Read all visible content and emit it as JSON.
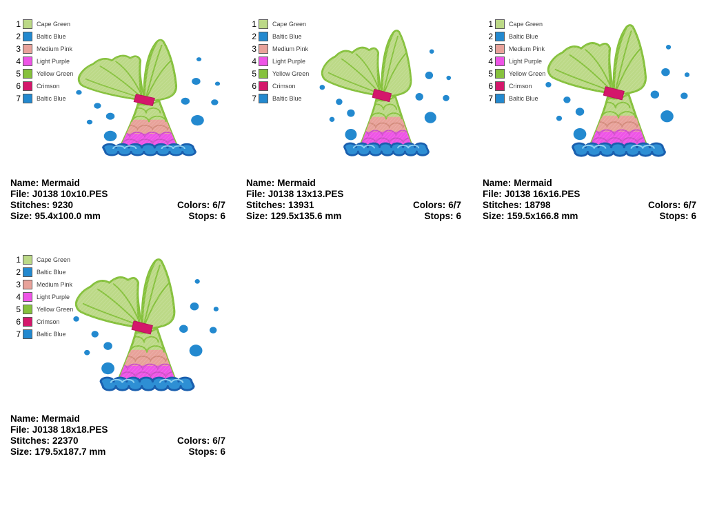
{
  "colors": {
    "cape_green": "#bcd987",
    "baltic_blue": "#2389cf",
    "medium_pink": "#e8a29a",
    "light_purple": "#ee54e6",
    "yellow_green": "#86c13d",
    "crimson": "#d4176b",
    "water_fill": "#2e8fd4",
    "water_edge": "#1a5fae",
    "info_text": "#000000"
  },
  "legend": [
    {
      "num": "1",
      "name": "Cape Green",
      "color": "#bcd987"
    },
    {
      "num": "2",
      "name": "Baltic Blue",
      "color": "#2389cf"
    },
    {
      "num": "3",
      "name": "Medium Pink",
      "color": "#e8a29a"
    },
    {
      "num": "4",
      "name": "Light Purple",
      "color": "#ee54e6"
    },
    {
      "num": "5",
      "name": "Yellow Green",
      "color": "#86c13d"
    },
    {
      "num": "6",
      "name": "Crimson",
      "color": "#d4176b"
    },
    {
      "num": "7",
      "name": "Baltic Blue",
      "color": "#2389cf"
    }
  ],
  "labels": {
    "name": "Name:",
    "file": "File:",
    "stitches": "Stitches:",
    "size": "Size:",
    "colors": "Colors:",
    "stops": "Stops:"
  },
  "panels": [
    {
      "name": "Mermaid",
      "file": "J0138 10x10.PES",
      "stitches": "9230",
      "size": "95.4x100.0 mm",
      "colors": "6/7",
      "stops": "6"
    },
    {
      "name": "Mermaid",
      "file": "J0138 13x13.PES",
      "stitches": "13931",
      "size": "129.5x135.6 mm",
      "colors": "6/7",
      "stops": "6"
    },
    {
      "name": "Mermaid",
      "file": "J0138 16x16.PES",
      "stitches": "18798",
      "size": "159.5x166.8 mm",
      "colors": "6/7",
      "stops": "6"
    },
    {
      "name": "Mermaid",
      "file": "J0138 18x18.PES",
      "stitches": "22370",
      "size": "179.5x187.7 mm",
      "colors": "6/7",
      "stops": "6"
    }
  ]
}
